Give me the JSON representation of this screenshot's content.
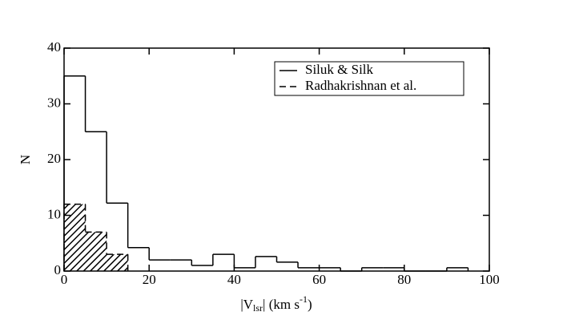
{
  "chart_data": {
    "type": "histogram",
    "ylabel": "N",
    "xlabel": {
      "start": "|V",
      "sub": "lsr",
      "middle": "| (km s",
      "sup": "-1",
      "end": ")"
    },
    "xlim": [
      0,
      100
    ],
    "xticks": [
      0,
      20,
      40,
      60,
      80,
      100
    ],
    "ylim": [
      0,
      40
    ],
    "yticks": [
      0,
      10,
      20,
      30,
      40
    ],
    "legend": "upper right",
    "series": [
      {
        "name": "Siluk & Silk",
        "color": "#000000",
        "style": "solid",
        "bins": [
          0,
          5,
          10,
          15,
          20,
          25,
          30,
          35,
          40,
          45,
          50,
          55,
          60,
          65,
          70,
          75,
          80,
          85,
          90,
          95
        ],
        "values": [
          35,
          25,
          12.2,
          4.2,
          2,
          2,
          1,
          3,
          0.6,
          2.6,
          1.6,
          0.6,
          0.6,
          0,
          0.6,
          0.6,
          0,
          0,
          0.6
        ]
      },
      {
        "name": "Radhakrishnan et al.",
        "color": "#000000",
        "style": "dashed",
        "hatch": true,
        "bins": [
          0,
          5,
          10,
          15
        ],
        "values": [
          12,
          7,
          3
        ]
      }
    ]
  }
}
